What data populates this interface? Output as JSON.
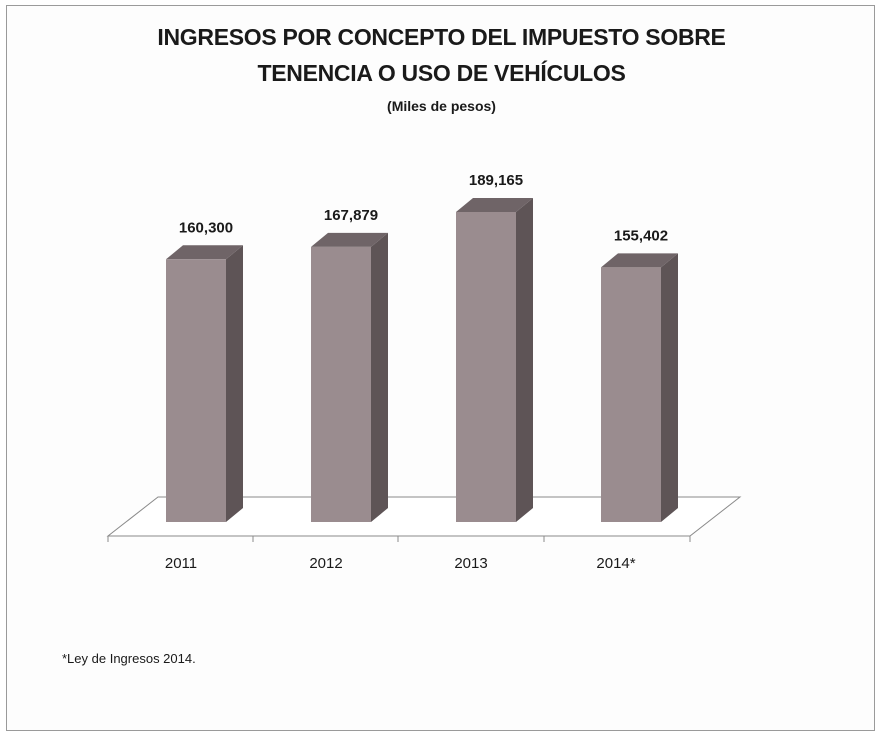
{
  "chart_data": {
    "type": "bar",
    "title_lines": [
      "INGRESOS POR CONCEPTO DEL IMPUESTO SOBRE",
      "TENENCIA O USO DE VEHÍCULOS"
    ],
    "subtitle": "(Miles de pesos)",
    "categories": [
      "2011",
      "2012",
      "2013",
      "2014*"
    ],
    "values": [
      160300,
      167879,
      189165,
      155402
    ],
    "value_labels": [
      "160,300",
      "167,879",
      "189,165",
      "155,402"
    ],
    "xlabel": "",
    "ylabel": "",
    "ylim": [
      0,
      189165
    ],
    "grid": false,
    "legend": "none",
    "style": "3d-column",
    "colors": {
      "bar_front": "#9a8c8f",
      "bar_side": "#5e5456",
      "bar_top": "#6f6467",
      "floor_line": "#8a8a8a"
    }
  },
  "footnote": "*Ley de Ingresos 2014."
}
